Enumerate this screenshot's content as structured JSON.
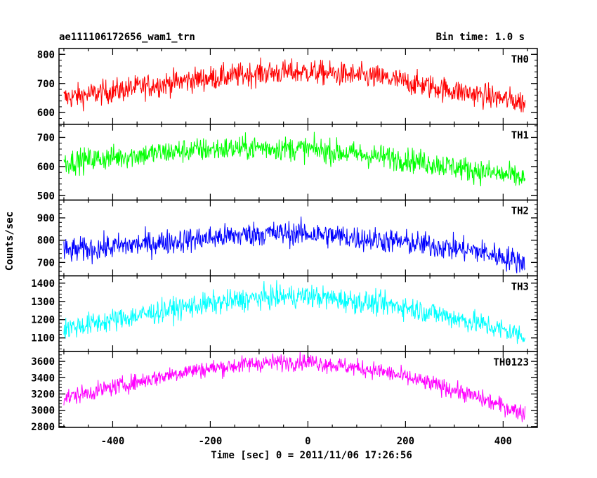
{
  "header": {
    "title": "ae111106172656_wam1_trn",
    "bin_time": "Bin time: 1.0 s"
  },
  "chart_data": {
    "type": "line",
    "xlabel": "Time [sec] 0 = 2011/11/06 17:26:56",
    "ylabel": "Counts/sec",
    "xlim": [
      -510,
      470
    ],
    "x_range": [
      -500,
      445
    ],
    "x_ticks": [
      -400,
      -200,
      0,
      200,
      400
    ],
    "panels": [
      {
        "name": "TH0",
        "color": "#ff0000",
        "ylim": [
          560,
          820
        ],
        "yticks": [
          600,
          700,
          800
        ],
        "profile": [
          [
            -500,
            650
          ],
          [
            -250,
            710
          ],
          [
            -100,
            735
          ],
          [
            0,
            740
          ],
          [
            150,
            720
          ],
          [
            300,
            675
          ],
          [
            445,
            635
          ]
        ],
        "noise": 30
      },
      {
        "name": "TH1",
        "color": "#00ff00",
        "ylim": [
          485,
          745
        ],
        "yticks": [
          500,
          600,
          700
        ],
        "profile": [
          [
            -500,
            615
          ],
          [
            -250,
            655
          ],
          [
            -100,
            665
          ],
          [
            0,
            660
          ],
          [
            200,
            625
          ],
          [
            350,
            585
          ],
          [
            445,
            560
          ]
        ],
        "noise": 30
      },
      {
        "name": "TH2",
        "color": "#0000ff",
        "ylim": [
          640,
          980
        ],
        "yticks": [
          700,
          800,
          900
        ],
        "profile": [
          [
            -500,
            750
          ],
          [
            -250,
            800
          ],
          [
            -100,
            830
          ],
          [
            0,
            830
          ],
          [
            200,
            790
          ],
          [
            350,
            750
          ],
          [
            445,
            700
          ]
        ],
        "noise": 40
      },
      {
        "name": "TH3",
        "color": "#00ffff",
        "ylim": [
          1025,
          1440
        ],
        "yticks": [
          1100,
          1200,
          1300,
          1400
        ],
        "profile": [
          [
            -500,
            1150
          ],
          [
            -250,
            1270
          ],
          [
            -100,
            1320
          ],
          [
            0,
            1330
          ],
          [
            200,
            1270
          ],
          [
            350,
            1180
          ],
          [
            445,
            1110
          ]
        ],
        "noise": 45
      },
      {
        "name": "TH0123",
        "color": "#ff00ff",
        "ylim": [
          2790,
          3720
        ],
        "yticks": [
          2800,
          3000,
          3200,
          3400,
          3600
        ],
        "profile": [
          [
            -500,
            3150
          ],
          [
            -250,
            3480
          ],
          [
            -100,
            3580
          ],
          [
            0,
            3600
          ],
          [
            150,
            3480
          ],
          [
            300,
            3250
          ],
          [
            445,
            2960
          ]
        ],
        "noise": 75
      }
    ]
  }
}
